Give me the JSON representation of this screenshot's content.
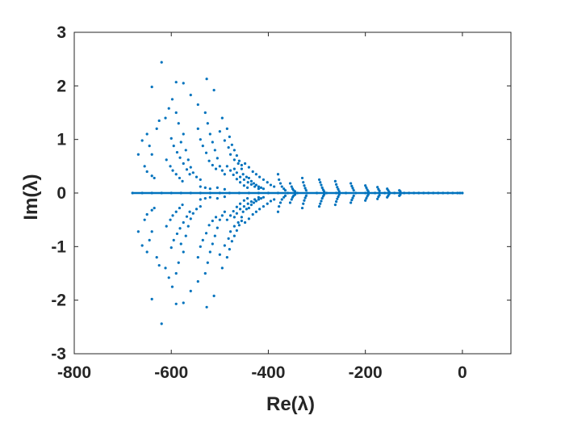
{
  "chart_data": {
    "type": "scatter",
    "title": "",
    "xlabel": "Re(λ)",
    "ylabel": "Im(λ)",
    "xlim": [
      -800,
      100
    ],
    "ylim": [
      -3,
      3
    ],
    "xticks": [
      -800,
      -600,
      -400,
      -200,
      0
    ],
    "yticks": [
      -3,
      -2,
      -1,
      0,
      1,
      2,
      3
    ],
    "xtick_labels": [
      "-800",
      "-600",
      "-400",
      "-200",
      "0"
    ],
    "ytick_labels": [
      "-3",
      "-2",
      "-1",
      "0",
      "1",
      "2",
      "3"
    ],
    "grid": false,
    "box": true,
    "marker_color": "#0072BD",
    "axis_color": "#262626",
    "symmetric_about_real_axis": true,
    "real_axis_band": {
      "x_from": -680,
      "x_to": 0,
      "y": 0
    },
    "points_upper_half": [
      [
        -620,
        2.44
      ],
      [
        -640,
        1.98
      ],
      [
        -590,
        2.07
      ],
      [
        -575,
        2.05
      ],
      [
        -527,
        2.13
      ],
      [
        -512,
        1.92
      ],
      [
        -560,
        1.83
      ],
      [
        -545,
        1.65
      ],
      [
        -598,
        1.75
      ],
      [
        -605,
        1.58
      ],
      [
        -612,
        1.4
      ],
      [
        -625,
        1.35
      ],
      [
        -630,
        1.2
      ],
      [
        -650,
        1.1
      ],
      [
        -660,
        0.98
      ],
      [
        -645,
        0.88
      ],
      [
        -640,
        0.72
      ],
      [
        -668,
        0.72
      ],
      [
        -655,
        0.5
      ],
      [
        -650,
        0.4
      ],
      [
        -640,
        0.32
      ],
      [
        -635,
        0.28
      ],
      [
        -590,
        1.5
      ],
      [
        -585,
        1.3
      ],
      [
        -575,
        1.1
      ],
      [
        -580,
        0.95
      ],
      [
        -570,
        0.8
      ],
      [
        -565,
        0.62
      ],
      [
        -560,
        0.48
      ],
      [
        -555,
        0.38
      ],
      [
        -548,
        0.3
      ],
      [
        -540,
        0.25
      ],
      [
        -530,
        1.5
      ],
      [
        -525,
        1.3
      ],
      [
        -520,
        1.1
      ],
      [
        -515,
        0.95
      ],
      [
        -510,
        0.8
      ],
      [
        -505,
        0.65
      ],
      [
        -500,
        0.5
      ],
      [
        -495,
        0.42
      ],
      [
        -490,
        0.35
      ],
      [
        -545,
        1.2
      ],
      [
        -540,
        1.0
      ],
      [
        -535,
        0.88
      ],
      [
        -528,
        0.75
      ],
      [
        -522,
        0.6
      ],
      [
        -515,
        0.52
      ],
      [
        -508,
        0.45
      ],
      [
        -495,
        1.4
      ],
      [
        -485,
        1.2
      ],
      [
        -480,
        1.05
      ],
      [
        -475,
        0.9
      ],
      [
        -470,
        0.8
      ],
      [
        -465,
        0.7
      ],
      [
        -460,
        0.6
      ],
      [
        -455,
        0.52
      ],
      [
        -500,
        1.15
      ],
      [
        -490,
        0.98
      ],
      [
        -482,
        0.85
      ],
      [
        -478,
        0.72
      ],
      [
        -470,
        0.62
      ],
      [
        -462,
        0.55
      ],
      [
        -455,
        0.45
      ],
      [
        -600,
        1.02
      ],
      [
        -595,
        0.88
      ],
      [
        -588,
        0.76
      ],
      [
        -582,
        0.66
      ],
      [
        -575,
        0.55
      ],
      [
        -568,
        0.44
      ],
      [
        -562,
        0.35
      ],
      [
        -610,
        0.62
      ],
      [
        -602,
        0.5
      ],
      [
        -597,
        0.42
      ],
      [
        -590,
        0.35
      ],
      [
        -583,
        0.28
      ],
      [
        -577,
        0.22
      ],
      [
        -452,
        0.35
      ],
      [
        -445,
        0.3
      ],
      [
        -440,
        0.28
      ],
      [
        -435,
        0.22
      ],
      [
        -430,
        0.18
      ],
      [
        -425,
        0.15
      ],
      [
        -420,
        0.12
      ],
      [
        -415,
        0.1
      ],
      [
        -410,
        0.08
      ],
      [
        -448,
        0.55
      ],
      [
        -440,
        0.48
      ],
      [
        -432,
        0.4
      ],
      [
        -425,
        0.35
      ],
      [
        -418,
        0.3
      ],
      [
        -410,
        0.25
      ],
      [
        -402,
        0.2
      ],
      [
        -395,
        0.15
      ],
      [
        -388,
        0.12
      ],
      [
        -470,
        0.45
      ],
      [
        -465,
        0.38
      ],
      [
        -458,
        0.3
      ],
      [
        -450,
        0.25
      ],
      [
        -442,
        0.2
      ],
      [
        -435,
        0.16
      ],
      [
        -428,
        0.12
      ],
      [
        -420,
        0.08
      ],
      [
        -485,
        0.5
      ],
      [
        -478,
        0.42
      ],
      [
        -472,
        0.34
      ],
      [
        -465,
        0.26
      ],
      [
        -458,
        0.2
      ],
      [
        -450,
        0.14
      ],
      [
        -443,
        0.1
      ],
      [
        -380,
        0.35
      ],
      [
        -378,
        0.25
      ],
      [
        -375,
        0.18
      ],
      [
        -372,
        0.12
      ],
      [
        -368,
        0.08
      ],
      [
        -365,
        0.05
      ],
      [
        -355,
        0.18
      ],
      [
        -352,
        0.12
      ],
      [
        -350,
        0.08
      ],
      [
        -348,
        0.05
      ],
      [
        -345,
        0.03
      ],
      [
        -330,
        0.28
      ],
      [
        -328,
        0.2
      ],
      [
        -326,
        0.14
      ],
      [
        -324,
        0.09
      ],
      [
        -322,
        0.05
      ],
      [
        -295,
        0.25
      ],
      [
        -293,
        0.2
      ],
      [
        -291,
        0.15
      ],
      [
        -289,
        0.1
      ],
      [
        -287,
        0.06
      ],
      [
        -285,
        0.03
      ],
      [
        -262,
        0.22
      ],
      [
        -260,
        0.16
      ],
      [
        -258,
        0.11
      ],
      [
        -256,
        0.07
      ],
      [
        -254,
        0.03
      ],
      [
        -230,
        0.18
      ],
      [
        -228,
        0.13
      ],
      [
        -226,
        0.09
      ],
      [
        -224,
        0.05
      ],
      [
        -200,
        0.14
      ],
      [
        -198,
        0.1
      ],
      [
        -196,
        0.06
      ],
      [
        -194,
        0.03
      ],
      [
        -175,
        0.11
      ],
      [
        -173,
        0.07
      ],
      [
        -171,
        0.04
      ],
      [
        -155,
        0.08
      ],
      [
        -153,
        0.05
      ],
      [
        -151,
        0.02
      ],
      [
        -130,
        0.05
      ],
      [
        -128,
        0.03
      ],
      [
        -540,
        0.12
      ],
      [
        -530,
        0.1
      ],
      [
        -520,
        0.08
      ],
      [
        -505,
        0.1
      ],
      [
        -490,
        0.07
      ]
    ],
    "points_real_axis": [
      [
        -680,
        0
      ],
      [
        -660,
        0
      ],
      [
        -640,
        0
      ],
      [
        -620,
        0
      ],
      [
        -600,
        0
      ],
      [
        -580,
        0
      ],
      [
        -560,
        0
      ],
      [
        -540,
        0
      ],
      [
        -520,
        0
      ],
      [
        -500,
        0
      ],
      [
        -480,
        0
      ],
      [
        -460,
        0
      ],
      [
        -440,
        0
      ],
      [
        -420,
        0
      ],
      [
        -400,
        0
      ],
      [
        -380,
        0
      ],
      [
        -360,
        0
      ],
      [
        -340,
        0
      ],
      [
        -320,
        0
      ],
      [
        -300,
        0
      ],
      [
        -280,
        0
      ],
      [
        -260,
        0
      ],
      [
        -240,
        0
      ],
      [
        -220,
        0
      ],
      [
        -200,
        0
      ],
      [
        -180,
        0
      ],
      [
        -160,
        0
      ],
      [
        -140,
        0
      ],
      [
        -120,
        0
      ],
      [
        -110,
        0
      ],
      [
        -100,
        0
      ],
      [
        -90,
        0
      ],
      [
        -80,
        0
      ],
      [
        -70,
        0
      ],
      [
        -60,
        0
      ],
      [
        -50,
        0
      ],
      [
        -40,
        0
      ],
      [
        -30,
        0
      ],
      [
        -20,
        0
      ],
      [
        -10,
        0
      ],
      [
        -5,
        0
      ],
      [
        0,
        0
      ]
    ]
  }
}
